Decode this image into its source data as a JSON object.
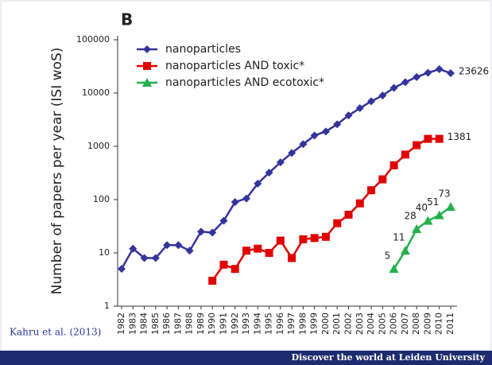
{
  "panel_label": "B",
  "chart_data": {
    "type": "line",
    "ylabel": "Number of papers per year (ISI woS)",
    "log": true,
    "ylim": [
      1,
      100000
    ],
    "yticks": [
      1,
      10,
      100,
      1000,
      10000,
      100000
    ],
    "categories": [
      "1982",
      "1983",
      "1984",
      "1985",
      "1986",
      "1987",
      "1988",
      "1989",
      "1990",
      "1991",
      "1992",
      "1993",
      "1994",
      "1995",
      "1996",
      "1997",
      "1998",
      "1999",
      "2000",
      "2001",
      "2002",
      "2003",
      "2004",
      "2005",
      "2006",
      "2007",
      "2008",
      "2009",
      "2010",
      "2011"
    ],
    "series": [
      {
        "name": "nanoparticles",
        "color": "#34349c",
        "marker": "diamond",
        "values": [
          5,
          12,
          8,
          8,
          14,
          14,
          11,
          25,
          24,
          40,
          90,
          105,
          200,
          320,
          500,
          750,
          1100,
          1600,
          1900,
          2600,
          3800,
          5200,
          7000,
          9000,
          12500,
          16000,
          20000,
          24000,
          28000,
          23626
        ],
        "value_labels": [
          null,
          null,
          null,
          null,
          null,
          null,
          null,
          null,
          null,
          null,
          null,
          null,
          null,
          null,
          null,
          null,
          null,
          null,
          null,
          null,
          null,
          null,
          null,
          null,
          null,
          null,
          null,
          null,
          null,
          "23626"
        ]
      },
      {
        "name": "nanoparticles AND toxic*",
        "color": "#e00000",
        "marker": "square",
        "values": [
          null,
          null,
          null,
          null,
          null,
          null,
          null,
          null,
          3,
          6,
          5,
          11,
          12,
          10,
          17,
          8,
          18,
          19,
          20,
          36,
          52,
          85,
          150,
          240,
          440,
          700,
          1050,
          1380,
          1381,
          null
        ],
        "value_labels": [
          null,
          null,
          null,
          null,
          null,
          null,
          null,
          null,
          null,
          null,
          null,
          null,
          null,
          null,
          null,
          null,
          null,
          null,
          null,
          null,
          null,
          null,
          null,
          null,
          null,
          null,
          null,
          null,
          "1381",
          null
        ]
      },
      {
        "name": "nanoparticles AND ecotoxic*",
        "color": "#22b04a",
        "marker": "triangle",
        "values": [
          null,
          null,
          null,
          null,
          null,
          null,
          null,
          null,
          null,
          null,
          null,
          null,
          null,
          null,
          null,
          null,
          null,
          null,
          null,
          null,
          null,
          null,
          null,
          null,
          5,
          11,
          28,
          40,
          51,
          73
        ],
        "value_labels": [
          null,
          null,
          null,
          null,
          null,
          null,
          null,
          null,
          null,
          null,
          null,
          null,
          null,
          null,
          null,
          null,
          null,
          null,
          null,
          null,
          null,
          null,
          null,
          null,
          "5",
          "11",
          "28",
          "40",
          "51",
          "73"
        ]
      }
    ]
  },
  "citation": "Kahru et al. (2013)",
  "footer": "Discover the world at Leiden University"
}
